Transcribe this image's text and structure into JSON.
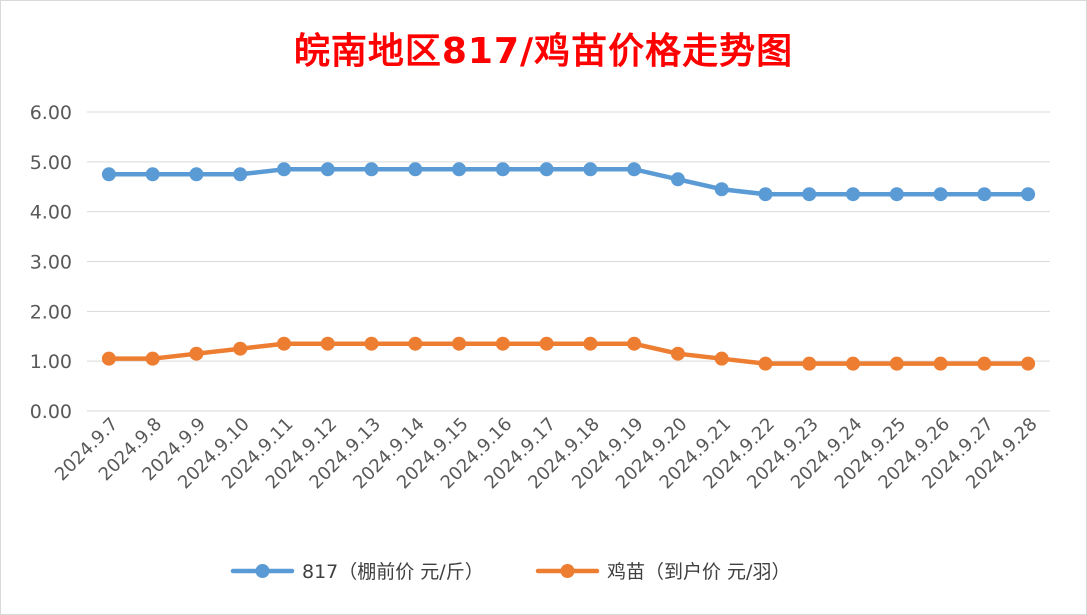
{
  "chart_data": {
    "type": "line",
    "title": "皖南地区817/鸡苗价格走势图",
    "categories": [
      "2024.9.7",
      "2024.9.8",
      "2024.9.9",
      "2024.9.10",
      "2024.9.11",
      "2024.9.12",
      "2024.9.13",
      "2024.9.14",
      "2024.9.15",
      "2024.9.16",
      "2024.9.17",
      "2024.9.18",
      "2024.9.19",
      "2024.9.20",
      "2024.9.21",
      "2024.9.22",
      "2024.9.23",
      "2024.9.24",
      "2024.9.25",
      "2024.9.26",
      "2024.9.27",
      "2024.9.28"
    ],
    "series": [
      {
        "name": "817（棚前价 元/斤）",
        "color": "#5b9bd5",
        "values": [
          4.75,
          4.75,
          4.75,
          4.75,
          4.85,
          4.85,
          4.85,
          4.85,
          4.85,
          4.85,
          4.85,
          4.85,
          4.85,
          4.65,
          4.45,
          4.35,
          4.35,
          4.35,
          4.35,
          4.35,
          4.35,
          4.35
        ]
      },
      {
        "name": "鸡苗（到户价 元/羽）",
        "color": "#ed7d31",
        "values": [
          1.05,
          1.05,
          1.15,
          1.25,
          1.35,
          1.35,
          1.35,
          1.35,
          1.35,
          1.35,
          1.35,
          1.35,
          1.35,
          1.15,
          1.05,
          0.95,
          0.95,
          0.95,
          0.95,
          0.95,
          0.95,
          0.95
        ]
      }
    ],
    "ylim": [
      0,
      6
    ],
    "yticks": [
      "0.00",
      "1.00",
      "2.00",
      "3.00",
      "4.00",
      "5.00",
      "6.00"
    ],
    "grid": true,
    "legend": "bottom"
  }
}
